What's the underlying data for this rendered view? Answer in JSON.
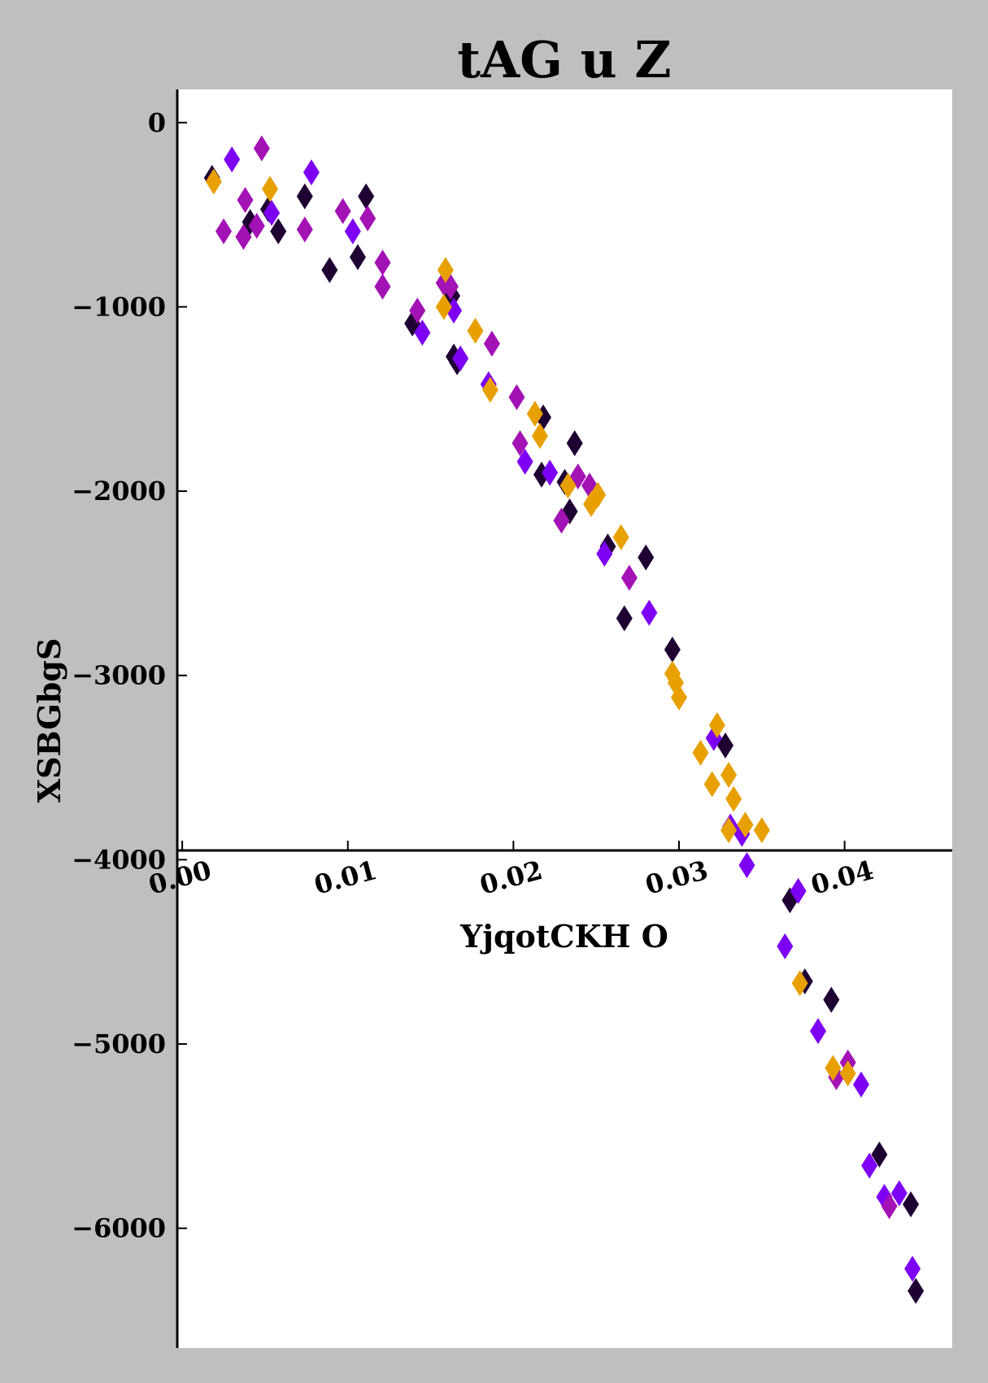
{
  "chart_data": {
    "type": "scatter",
    "title": "tAG u Z",
    "xlabel": "YjqotCKH O",
    "ylabel": "XSBGbgS",
    "xlim": [
      -0.0003,
      0.0465
    ],
    "ylim": [
      -6650,
      180
    ],
    "x_ticks": [
      {
        "value": 0.0,
        "label": "0.00"
      },
      {
        "value": 0.01,
        "label": "0.01"
      },
      {
        "value": 0.02,
        "label": "0.02"
      },
      {
        "value": 0.03,
        "label": "0.03"
      },
      {
        "value": 0.04,
        "label": "0.04"
      }
    ],
    "y_ticks": [
      {
        "value": 0,
        "label": "0"
      },
      {
        "value": -1000,
        "label": "−1000"
      },
      {
        "value": -2000,
        "label": "−2000"
      },
      {
        "value": -3000,
        "label": "−3000"
      },
      {
        "value": -4000,
        "label": "−4000"
      },
      {
        "value": -5000,
        "label": "−5000"
      },
      {
        "value": -6000,
        "label": "−6000"
      }
    ],
    "grid": false,
    "marker": "diamond",
    "colors": {
      "background": "#bfbfbf",
      "plot_background": "#ffffff",
      "axis": "#000000"
    },
    "series": [
      {
        "color": "#1f0033",
        "points": [
          [
            0.0018,
            -300
          ],
          [
            0.0041,
            -540
          ],
          [
            0.0052,
            -470
          ],
          [
            0.0058,
            -590
          ],
          [
            0.0074,
            -400
          ],
          [
            0.0089,
            -800
          ],
          [
            0.0106,
            -730
          ],
          [
            0.0111,
            -400
          ],
          [
            0.0139,
            -1090
          ],
          [
            0.0163,
            -940
          ],
          [
            0.0164,
            -1270
          ],
          [
            0.0166,
            -1300
          ],
          [
            0.0218,
            -1600
          ],
          [
            0.0217,
            -1910
          ],
          [
            0.0231,
            -1950
          ],
          [
            0.0234,
            -2110
          ],
          [
            0.0237,
            -1740
          ],
          [
            0.0257,
            -2300
          ],
          [
            0.0267,
            -2690
          ],
          [
            0.028,
            -2360
          ],
          [
            0.0296,
            -2860
          ],
          [
            0.0328,
            -3380
          ],
          [
            0.0367,
            -4220
          ],
          [
            0.0376,
            -4660
          ],
          [
            0.0392,
            -4760
          ],
          [
            0.0421,
            -5600
          ],
          [
            0.044,
            -5870
          ],
          [
            0.0443,
            -6340
          ]
        ]
      },
      {
        "color": "#7d00f5",
        "points": [
          [
            0.003,
            -200
          ],
          [
            0.0054,
            -490
          ],
          [
            0.0078,
            -270
          ],
          [
            0.0103,
            -590
          ],
          [
            0.0145,
            -1140
          ],
          [
            0.0164,
            -1020
          ],
          [
            0.0168,
            -1280
          ],
          [
            0.0185,
            -1420
          ],
          [
            0.0207,
            -1840
          ],
          [
            0.0222,
            -1900
          ],
          [
            0.0255,
            -2340
          ],
          [
            0.0282,
            -2660
          ],
          [
            0.0321,
            -3340
          ],
          [
            0.0331,
            -3820
          ],
          [
            0.0338,
            -3860
          ],
          [
            0.0341,
            -4030
          ],
          [
            0.0372,
            -4170
          ],
          [
            0.0364,
            -4470
          ],
          [
            0.0384,
            -4930
          ],
          [
            0.041,
            -5220
          ],
          [
            0.0415,
            -5660
          ],
          [
            0.0424,
            -5830
          ],
          [
            0.0433,
            -5810
          ],
          [
            0.0441,
            -6220
          ]
        ]
      },
      {
        "color": "#a312b5",
        "points": [
          [
            0.0025,
            -590
          ],
          [
            0.0038,
            -420
          ],
          [
            0.0037,
            -620
          ],
          [
            0.0045,
            -560
          ],
          [
            0.0048,
            -140
          ],
          [
            0.0074,
            -580
          ],
          [
            0.0097,
            -480
          ],
          [
            0.0112,
            -520
          ],
          [
            0.0121,
            -760
          ],
          [
            0.0121,
            -890
          ],
          [
            0.0142,
            -1020
          ],
          [
            0.0158,
            -870
          ],
          [
            0.0162,
            -890
          ],
          [
            0.0187,
            -1200
          ],
          [
            0.0202,
            -1490
          ],
          [
            0.0204,
            -1740
          ],
          [
            0.0229,
            -2160
          ],
          [
            0.0239,
            -1920
          ],
          [
            0.0246,
            -1970
          ],
          [
            0.027,
            -2470
          ],
          [
            0.0395,
            -5180
          ],
          [
            0.0402,
            -5100
          ],
          [
            0.0427,
            -5880
          ]
        ]
      },
      {
        "color": "#e8a000",
        "points": [
          [
            0.0019,
            -320
          ],
          [
            0.0053,
            -360
          ],
          [
            0.0159,
            -800
          ],
          [
            0.0158,
            -1000
          ],
          [
            0.0177,
            -1130
          ],
          [
            0.0186,
            -1450
          ],
          [
            0.0213,
            -1580
          ],
          [
            0.0216,
            -1700
          ],
          [
            0.0233,
            -1970
          ],
          [
            0.0247,
            -2070
          ],
          [
            0.0251,
            -2020
          ],
          [
            0.0265,
            -2250
          ],
          [
            0.0296,
            -2990
          ],
          [
            0.0298,
            -3040
          ],
          [
            0.03,
            -3120
          ],
          [
            0.0313,
            -3420
          ],
          [
            0.032,
            -3590
          ],
          [
            0.0323,
            -3270
          ],
          [
            0.033,
            -3540
          ],
          [
            0.0333,
            -3670
          ],
          [
            0.033,
            -3840
          ],
          [
            0.034,
            -3810
          ],
          [
            0.035,
            -3840
          ],
          [
            0.0373,
            -4670
          ],
          [
            0.0393,
            -5130
          ],
          [
            0.0402,
            -5160
          ]
        ]
      }
    ]
  }
}
